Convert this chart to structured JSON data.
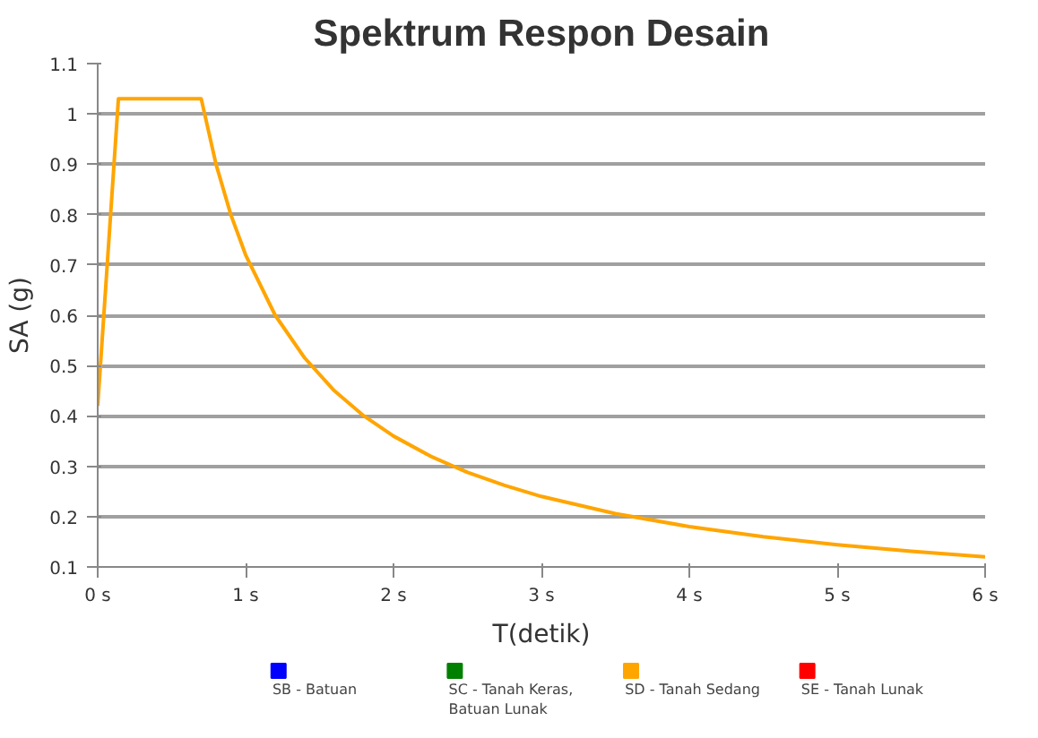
{
  "chart_data": {
    "type": "line",
    "title": "Spektrum Respon Desain",
    "xlabel": "T(detik)",
    "ylabel": "SA (g)",
    "x": [
      0,
      0.14,
      0.7,
      0.8,
      0.9,
      1.0,
      1.2,
      1.4,
      1.6,
      1.8,
      2.0,
      2.25,
      2.5,
      2.75,
      3.0,
      3.5,
      4.0,
      4.5,
      5.0,
      5.5,
      6.0
    ],
    "series": [
      {
        "name": "SB - Batuan",
        "color": "#0000ff",
        "values": [
          null,
          null,
          null,
          null,
          null,
          null,
          null,
          null,
          null,
          null,
          null,
          null,
          null,
          null,
          null,
          null,
          null,
          null,
          null,
          null,
          null
        ]
      },
      {
        "name": "SC - Tanah Keras, Batuan Lunak",
        "color": "#008000",
        "values": [
          null,
          null,
          null,
          null,
          null,
          null,
          null,
          null,
          null,
          null,
          null,
          null,
          null,
          null,
          null,
          null,
          null,
          null,
          null,
          null,
          null
        ]
      },
      {
        "name": "SD - Tanah Sedang",
        "color": "#ffa500",
        "values": [
          0.42,
          1.03,
          1.03,
          0.9,
          0.8,
          0.72,
          0.6,
          0.515,
          0.45,
          0.4,
          0.36,
          0.32,
          0.288,
          0.262,
          0.24,
          0.206,
          0.18,
          0.16,
          0.144,
          0.131,
          0.12
        ]
      },
      {
        "name": "SE - Tanah Lunak",
        "color": "#ff0000",
        "values": [
          null,
          null,
          null,
          null,
          null,
          null,
          null,
          null,
          null,
          null,
          null,
          null,
          null,
          null,
          null,
          null,
          null,
          null,
          null,
          null,
          null
        ]
      }
    ],
    "xlim": [
      0,
      6
    ],
    "xticks": [
      {
        "value": 0,
        "label": "0 s"
      },
      {
        "value": 1,
        "label": "1 s"
      },
      {
        "value": 2,
        "label": "2 s"
      },
      {
        "value": 3,
        "label": "3 s"
      },
      {
        "value": 4,
        "label": "4 s"
      },
      {
        "value": 5,
        "label": "5 s"
      },
      {
        "value": 6,
        "label": "6 s"
      }
    ],
    "ylim": [
      0.1,
      1.1
    ],
    "yticks": [
      0.1,
      0.2,
      0.3,
      0.4,
      0.5,
      0.6,
      0.7,
      0.8,
      0.9,
      1,
      1.1
    ],
    "grid": "y",
    "legend": "bottom",
    "marker": "none",
    "line_style": "solid"
  }
}
